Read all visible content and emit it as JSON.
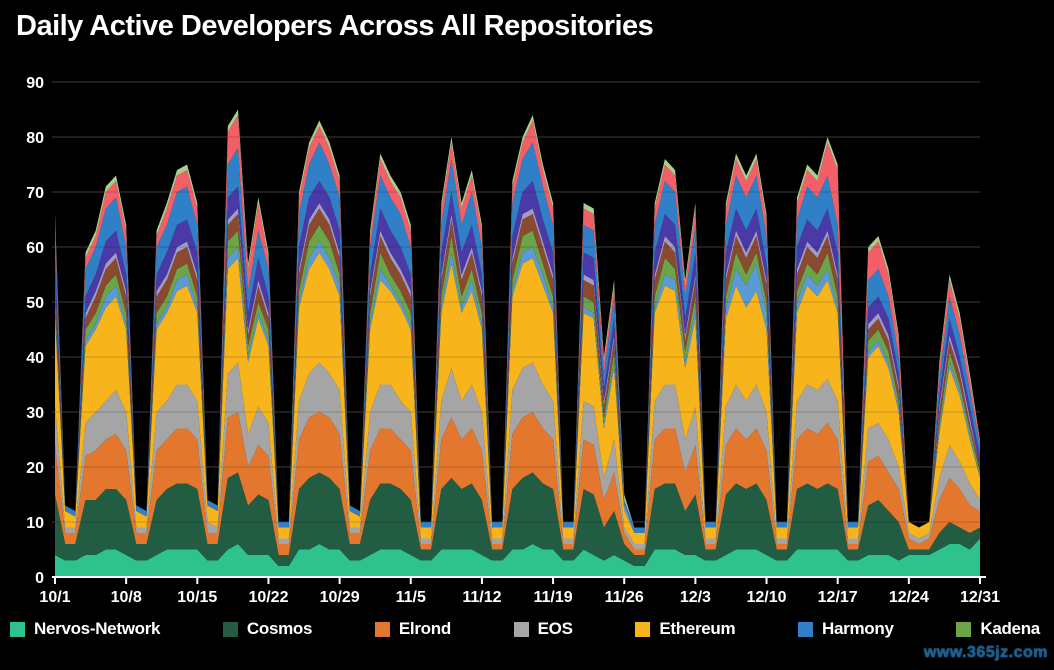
{
  "title": "Daily Active Developers Across All Repositories",
  "watermark": "www.365jz.com",
  "colors": {
    "background": "#000000",
    "grid": "#4a4a4a",
    "grid_overlay": "rgba(0,0,0,0.18)",
    "axis": "#ffffff",
    "text": "#ffffff",
    "watermark": "#1d5b9b"
  },
  "legend": [
    {
      "label": "Nervos-Network",
      "color": "#2ec28e"
    },
    {
      "label": "Cosmos",
      "color": "#215c43"
    },
    {
      "label": "Elrond",
      "color": "#e2772d"
    },
    {
      "label": "EOS",
      "color": "#a5a5a5"
    },
    {
      "label": "Ethereum",
      "color": "#f7b51b"
    },
    {
      "label": "Harmony",
      "color": "#2f80c7"
    },
    {
      "label": "Kadena",
      "color": "#6ca44a"
    }
  ],
  "chart_data": {
    "type": "area",
    "stacked": true,
    "title": "Daily Active Developers Across All Repositories",
    "xlabel": "",
    "ylabel": "",
    "ylim": [
      0,
      90
    ],
    "y_ticks": [
      0,
      10,
      20,
      30,
      40,
      50,
      60,
      70,
      80,
      90
    ],
    "x_tick_labels": [
      "10/1",
      "10/8",
      "10/15",
      "10/22",
      "10/29",
      "11/5",
      "11/12",
      "11/19",
      "11/26",
      "12/3",
      "12/10",
      "12/17",
      "12/24",
      "12/31"
    ],
    "x_tick_day_indices": [
      0,
      7,
      14,
      21,
      28,
      35,
      42,
      49,
      56,
      63,
      70,
      77,
      84,
      91
    ],
    "num_days": 92,
    "date_range": "daily values 10/1 through 12/31",
    "grid": "horizontal only",
    "legend_position": "bottom",
    "series": [
      {
        "name": "Nervos-Network",
        "in_legend": true,
        "color": "#2ec28e",
        "values": [
          4,
          3,
          3,
          4,
          4,
          5,
          5,
          4,
          3,
          3,
          4,
          5,
          5,
          5,
          5,
          3,
          3,
          5,
          6,
          4,
          4,
          4,
          2,
          2,
          5,
          5,
          6,
          5,
          5,
          3,
          3,
          4,
          5,
          5,
          5,
          4,
          3,
          3,
          5,
          5,
          5,
          5,
          4,
          3,
          3,
          5,
          5,
          6,
          5,
          5,
          3,
          3,
          5,
          4,
          3,
          4,
          3,
          2,
          2,
          5,
          5,
          5,
          4,
          4,
          3,
          3,
          4,
          5,
          5,
          5,
          4,
          3,
          3,
          5,
          5,
          5,
          5,
          5,
          3,
          3,
          4,
          4,
          4,
          3,
          4,
          4,
          4,
          5,
          6,
          6,
          5,
          7
        ]
      },
      {
        "name": "Cosmos",
        "in_legend": true,
        "color": "#215c43",
        "values": [
          11,
          3,
          3,
          10,
          10,
          11,
          11,
          10,
          3,
          3,
          10,
          11,
          12,
          12,
          11,
          3,
          3,
          13,
          13,
          9,
          11,
          10,
          2,
          2,
          11,
          13,
          13,
          13,
          11,
          3,
          3,
          10,
          12,
          12,
          11,
          10,
          2,
          2,
          11,
          13,
          11,
          12,
          10,
          2,
          2,
          11,
          13,
          13,
          12,
          11,
          2,
          2,
          11,
          11,
          6,
          8,
          3,
          2,
          2,
          11,
          12,
          12,
          8,
          11,
          2,
          2,
          11,
          12,
          11,
          12,
          10,
          2,
          2,
          11,
          12,
          11,
          12,
          11,
          2,
          2,
          9,
          10,
          8,
          7,
          1,
          1,
          1,
          3,
          4,
          3,
          3,
          2
        ]
      },
      {
        "name": "Elrond",
        "in_legend": true,
        "color": "#e2772d",
        "values": [
          9,
          2,
          2,
          8,
          9,
          9,
          10,
          9,
          2,
          2,
          9,
          9,
          10,
          10,
          9,
          2,
          2,
          11,
          11,
          7,
          9,
          8,
          2,
          2,
          9,
          11,
          11,
          11,
          10,
          2,
          2,
          9,
          10,
          10,
          9,
          9,
          1,
          1,
          9,
          11,
          9,
          10,
          9,
          1,
          1,
          10,
          11,
          11,
          10,
          9,
          1,
          1,
          9,
          9,
          5,
          7,
          2,
          1,
          1,
          9,
          10,
          10,
          7,
          9,
          1,
          1,
          9,
          10,
          9,
          10,
          9,
          1,
          1,
          9,
          10,
          10,
          11,
          9,
          1,
          1,
          8,
          8,
          7,
          6,
          2,
          1,
          2,
          6,
          8,
          7,
          5,
          3
        ]
      },
      {
        "name": "EOS",
        "in_legend": true,
        "color": "#a5a5a5",
        "values": [
          7,
          1,
          1,
          6,
          7,
          7,
          8,
          7,
          1,
          1,
          7,
          7,
          8,
          8,
          7,
          2,
          1,
          8,
          9,
          6,
          7,
          6,
          1,
          1,
          7,
          8,
          9,
          8,
          8,
          1,
          1,
          7,
          8,
          8,
          7,
          7,
          1,
          1,
          7,
          9,
          7,
          8,
          7,
          1,
          1,
          8,
          9,
          9,
          8,
          7,
          1,
          1,
          7,
          7,
          4,
          6,
          1,
          1,
          1,
          7,
          8,
          8,
          6,
          7,
          1,
          1,
          7,
          8,
          7,
          8,
          7,
          1,
          1,
          7,
          8,
          8,
          8,
          7,
          1,
          1,
          6,
          6,
          6,
          4,
          1,
          1,
          1,
          4,
          6,
          5,
          4,
          2
        ]
      },
      {
        "name": "Ethereum",
        "in_legend": true,
        "color": "#f7b51b",
        "values": [
          16,
          3,
          2,
          14,
          15,
          17,
          17,
          15,
          3,
          2,
          15,
          16,
          17,
          18,
          16,
          3,
          3,
          19,
          19,
          13,
          16,
          14,
          2,
          2,
          17,
          19,
          20,
          19,
          17,
          3,
          2,
          15,
          19,
          17,
          17,
          15,
          2,
          2,
          16,
          19,
          16,
          17,
          15,
          2,
          2,
          17,
          19,
          19,
          18,
          16,
          2,
          2,
          16,
          16,
          9,
          13,
          3,
          2,
          2,
          16,
          18,
          17,
          13,
          16,
          2,
          2,
          16,
          18,
          17,
          17,
          15,
          2,
          2,
          16,
          18,
          17,
          18,
          16,
          2,
          2,
          13,
          14,
          13,
          10,
          2,
          2,
          2,
          8,
          14,
          12,
          8,
          4
        ]
      },
      {
        "name": "unlabeled-light-blue",
        "in_legend": false,
        "color": "#5b9bd5",
        "values": [
          1,
          0,
          0,
          1,
          1,
          2,
          2,
          1,
          0,
          0,
          1,
          1,
          2,
          2,
          1,
          0,
          0,
          2,
          2,
          1,
          1,
          1,
          0,
          0,
          1,
          2,
          2,
          2,
          2,
          0,
          0,
          1,
          2,
          1,
          1,
          1,
          0,
          0,
          1,
          2,
          1,
          2,
          1,
          0,
          0,
          1,
          2,
          2,
          2,
          1,
          0,
          0,
          1,
          1,
          1,
          1,
          0,
          0,
          0,
          1,
          2,
          2,
          1,
          2,
          0,
          0,
          2,
          3,
          4,
          5,
          3,
          0,
          0,
          2,
          2,
          2,
          2,
          1,
          0,
          0,
          1,
          1,
          1,
          1,
          0,
          0,
          0,
          1,
          1,
          1,
          1,
          0
        ]
      },
      {
        "name": "Kadena",
        "in_legend": true,
        "color": "#6ca44a",
        "values": [
          2,
          0,
          0,
          2,
          2,
          2,
          2,
          2,
          0,
          0,
          2,
          2,
          2,
          2,
          2,
          0,
          0,
          3,
          3,
          2,
          2,
          2,
          0,
          0,
          2,
          3,
          3,
          3,
          2,
          0,
          0,
          2,
          3,
          2,
          2,
          2,
          0,
          0,
          2,
          3,
          2,
          2,
          2,
          0,
          0,
          2,
          3,
          3,
          2,
          2,
          0,
          0,
          2,
          2,
          1,
          2,
          0,
          0,
          0,
          2,
          3,
          2,
          2,
          2,
          0,
          0,
          2,
          3,
          2,
          2,
          2,
          0,
          0,
          2,
          2,
          2,
          3,
          2,
          0,
          0,
          2,
          2,
          2,
          1,
          0,
          0,
          0,
          1,
          2,
          1,
          1,
          1
        ]
      },
      {
        "name": "unlabeled-brown",
        "in_legend": false,
        "color": "#8a4a2d",
        "values": [
          3,
          0,
          0,
          2,
          3,
          3,
          3,
          3,
          0,
          0,
          3,
          3,
          3,
          3,
          3,
          0,
          0,
          3,
          3,
          2,
          3,
          2,
          0,
          0,
          3,
          3,
          3,
          3,
          3,
          0,
          0,
          3,
          3,
          3,
          3,
          3,
          0,
          0,
          3,
          3,
          3,
          3,
          3,
          0,
          0,
          3,
          3,
          3,
          3,
          3,
          0,
          0,
          3,
          3,
          2,
          2,
          0,
          0,
          0,
          3,
          3,
          3,
          2,
          3,
          0,
          0,
          3,
          3,
          3,
          3,
          3,
          0,
          0,
          3,
          3,
          3,
          3,
          3,
          0,
          0,
          2,
          2,
          2,
          2,
          0,
          0,
          0,
          2,
          2,
          2,
          1,
          1
        ]
      },
      {
        "name": "unlabeled-lavender",
        "in_legend": false,
        "color": "#a29bc4",
        "values": [
          1,
          0,
          0,
          1,
          1,
          1,
          1,
          1,
          0,
          0,
          1,
          1,
          1,
          1,
          1,
          0,
          0,
          1,
          1,
          1,
          1,
          1,
          0,
          0,
          1,
          1,
          1,
          1,
          1,
          0,
          0,
          1,
          1,
          1,
          1,
          1,
          0,
          0,
          1,
          1,
          1,
          1,
          1,
          0,
          0,
          1,
          1,
          1,
          1,
          1,
          0,
          0,
          1,
          1,
          1,
          1,
          1,
          0,
          0,
          1,
          1,
          1,
          1,
          1,
          0,
          0,
          1,
          1,
          1,
          1,
          1,
          0,
          0,
          1,
          1,
          1,
          1,
          1,
          0,
          0,
          1,
          1,
          1,
          1,
          0,
          0,
          0,
          1,
          1,
          1,
          1,
          0
        ]
      },
      {
        "name": "unlabeled-purple",
        "in_legend": false,
        "color": "#4a3aa8",
        "values": [
          4,
          0,
          0,
          3,
          3,
          4,
          4,
          3,
          0,
          0,
          3,
          4,
          4,
          4,
          4,
          0,
          0,
          4,
          4,
          3,
          4,
          3,
          0,
          0,
          4,
          4,
          4,
          4,
          4,
          0,
          0,
          3,
          4,
          4,
          4,
          3,
          0,
          0,
          4,
          4,
          4,
          4,
          3,
          0,
          0,
          4,
          4,
          5,
          4,
          4,
          0,
          0,
          4,
          4,
          2,
          3,
          0,
          0,
          0,
          4,
          4,
          4,
          3,
          4,
          0,
          0,
          4,
          4,
          4,
          4,
          3,
          0,
          0,
          4,
          4,
          4,
          4,
          4,
          0,
          0,
          3,
          3,
          3,
          2,
          0,
          0,
          0,
          2,
          3,
          2,
          2,
          2
        ]
      },
      {
        "name": "Harmony",
        "in_legend": true,
        "color": "#2f80c7",
        "values": [
          5,
          1,
          1,
          5,
          5,
          6,
          6,
          5,
          1,
          1,
          5,
          5,
          6,
          6,
          5,
          1,
          1,
          6,
          7,
          4,
          5,
          5,
          1,
          1,
          6,
          6,
          7,
          6,
          6,
          1,
          1,
          5,
          6,
          6,
          6,
          5,
          1,
          1,
          5,
          6,
          5,
          6,
          5,
          1,
          1,
          6,
          6,
          7,
          6,
          5,
          1,
          1,
          5,
          5,
          3,
          4,
          1,
          1,
          1,
          5,
          6,
          6,
          4,
          5,
          1,
          1,
          5,
          6,
          6,
          6,
          5,
          1,
          1,
          5,
          6,
          6,
          6,
          5,
          1,
          1,
          5,
          5,
          4,
          3,
          0,
          0,
          0,
          3,
          4,
          4,
          3,
          2
        ]
      },
      {
        "name": "unlabeled-red",
        "in_legend": false,
        "color": "#f25f68",
        "values": [
          2,
          0,
          0,
          2,
          2,
          3,
          3,
          3,
          0,
          0,
          2,
          3,
          3,
          3,
          3,
          0,
          0,
          6,
          6,
          4,
          5,
          2,
          0,
          0,
          3,
          3,
          3,
          3,
          3,
          0,
          0,
          2,
          3,
          3,
          3,
          3,
          0,
          0,
          3,
          3,
          3,
          3,
          3,
          0,
          0,
          3,
          3,
          4,
          3,
          3,
          0,
          0,
          3,
          3,
          2,
          2,
          0,
          0,
          0,
          3,
          3,
          3,
          2,
          3,
          0,
          0,
          3,
          3,
          3,
          3,
          3,
          0,
          0,
          3,
          3,
          3,
          6,
          10,
          0,
          0,
          5,
          5,
          4,
          3,
          0,
          0,
          0,
          2,
          3,
          3,
          2,
          1
        ]
      },
      {
        "name": "unlabeled-light-green",
        "in_legend": false,
        "color": "#a8d08d",
        "values": [
          1,
          0,
          0,
          1,
          1,
          1,
          1,
          1,
          0,
          0,
          1,
          1,
          1,
          1,
          1,
          0,
          0,
          1,
          1,
          1,
          1,
          1,
          0,
          0,
          1,
          1,
          1,
          1,
          1,
          0,
          0,
          1,
          1,
          1,
          1,
          1,
          0,
          0,
          1,
          1,
          1,
          1,
          1,
          0,
          0,
          1,
          1,
          1,
          1,
          1,
          0,
          0,
          1,
          1,
          1,
          1,
          1,
          0,
          0,
          1,
          1,
          1,
          1,
          1,
          0,
          0,
          1,
          1,
          1,
          1,
          1,
          0,
          0,
          1,
          1,
          1,
          1,
          1,
          0,
          0,
          1,
          1,
          1,
          1,
          0,
          0,
          0,
          1,
          1,
          1,
          1,
          0
        ]
      }
    ]
  }
}
